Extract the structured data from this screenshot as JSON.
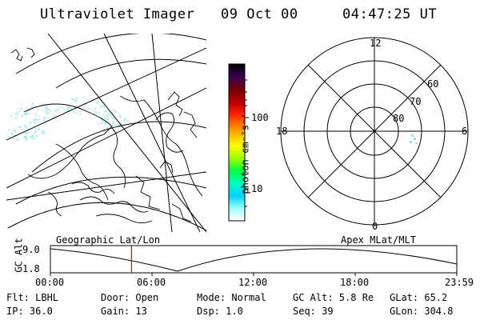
{
  "header": {
    "title": "Ultraviolet Imager",
    "date": "09 Oct 00",
    "time": "04:47:25 UT"
  },
  "left_map": {
    "caption": "Geographic Lat/Lon"
  },
  "colorbar": {
    "unit_label": "photon cm⁻²s⁻¹",
    "ticks": [
      "100",
      "10"
    ],
    "colors": [
      "#000000",
      "#3a0050",
      "#7a0000",
      "#c00000",
      "#ff2000",
      "#ff7000",
      "#ffb000",
      "#ffff00",
      "#a0ff00",
      "#00ff40",
      "#00ffc0",
      "#00d0ff",
      "#a0ffff",
      "#ffffff"
    ]
  },
  "polar_plot": {
    "caption": "Apex MLat/MLT",
    "mlt_labels": [
      "12",
      "18",
      "6",
      "0"
    ],
    "lat_labels": [
      "60",
      "70",
      "80"
    ]
  },
  "timeline": {
    "ylabel": "GC Alt",
    "ymax_label": "9.0",
    "ymin_label": "1.8",
    "xticks": [
      "00:00",
      "06:00",
      "12:00",
      "18:00",
      "23:59"
    ],
    "marker_time_hours": 4.79
  },
  "info": {
    "flt": "Flt: LBHL",
    "ip": "IP: 36.0",
    "door": "Door: Open",
    "gain": "Gain: 13",
    "mode": "Mode: Normal",
    "dsp": "Dsp:    1.0",
    "gcalt": "GC Alt: 5.8 Re",
    "seq": "Seq: 39",
    "glat": "GLat:  65.2",
    "glon": "GLon: 304.8"
  },
  "colors": {
    "marker": "#e00000",
    "aurora": "#7fd8e0"
  }
}
